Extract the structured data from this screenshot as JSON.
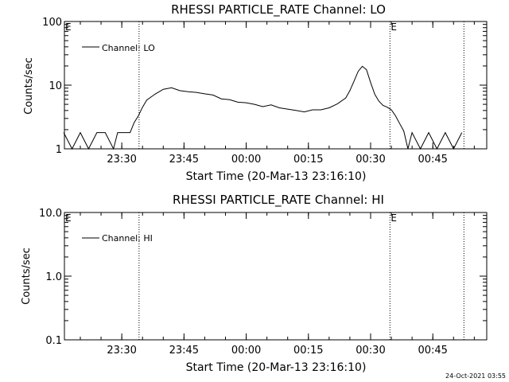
{
  "chart_data": [
    {
      "type": "line",
      "title": "RHESSI PARTICLE_RATE Channel: LO",
      "xlabel": "Start Time (20-Mar-13 23:16:10)",
      "ylabel": "Counts/sec",
      "yscale": "log",
      "ylim": [
        1,
        100
      ],
      "xlim": [
        "23:16:10",
        "00:58:00"
      ],
      "x_ticks": [
        "23:30",
        "23:45",
        "00:00",
        "00:15",
        "00:30",
        "00:45"
      ],
      "y_ticks": [
        "1",
        "10",
        "100"
      ],
      "legend_entry": "Channel: LO",
      "legend_placement": "top-left",
      "markers": [
        {
          "label": "E",
          "time": "23:16:10"
        },
        {
          "label": "",
          "time": "23:34:10"
        },
        {
          "label": "E",
          "time": "00:34:40"
        },
        {
          "label": "",
          "time": "00:52:30"
        }
      ],
      "series": [
        {
          "x": [
            "23:16",
            "23:18",
            "23:20",
            "23:22",
            "23:24",
            "23:26",
            "23:28",
            "23:29",
            "23:30",
            "23:32",
            "23:33",
            "23:34",
            "23:35",
            "23:36",
            "23:38",
            "23:40",
            "23:42",
            "23:44",
            "23:46",
            "23:48",
            "23:50",
            "23:52",
            "23:54",
            "23:56",
            "23:58",
            "00:00",
            "00:02",
            "00:04",
            "00:06",
            "00:08",
            "00:10",
            "00:12",
            "00:14",
            "00:16",
            "00:18",
            "00:20",
            "00:22",
            "00:24",
            "00:25",
            "00:26",
            "00:27",
            "00:28",
            "00:29",
            "00:30",
            "00:31",
            "00:32",
            "00:33",
            "00:34",
            "00:35",
            "00:36",
            "00:37",
            "00:38",
            "00:39",
            "00:40",
            "00:42",
            "00:44",
            "00:46",
            "00:48",
            "00:50",
            "00:52"
          ],
          "values": [
            1.8,
            1.0,
            1.8,
            1.0,
            1.8,
            1.8,
            1.0,
            1.8,
            1.8,
            1.8,
            2.6,
            3.3,
            4.5,
            5.8,
            7.2,
            8.6,
            9.1,
            8.2,
            7.9,
            7.7,
            7.3,
            7.0,
            6.1,
            5.9,
            5.4,
            5.3,
            5.0,
            4.6,
            4.9,
            4.4,
            4.2,
            4.0,
            3.8,
            4.1,
            4.1,
            4.4,
            5.1,
            6.3,
            8.2,
            11.5,
            16.5,
            19.8,
            17.5,
            11.0,
            7.2,
            5.6,
            4.8,
            4.5,
            4.1,
            3.3,
            2.5,
            1.9,
            1.0,
            1.8,
            1.0,
            1.8,
            1.0,
            1.8,
            1.0,
            1.8
          ]
        }
      ]
    },
    {
      "type": "line",
      "title": "RHESSI PARTICLE_RATE Channel: HI",
      "xlabel": "Start Time (20-Mar-13 23:16:10)",
      "ylabel": "Counts/sec",
      "yscale": "log",
      "ylim": [
        0.1,
        10
      ],
      "xlim": [
        "23:16:10",
        "00:58:00"
      ],
      "x_ticks": [
        "23:30",
        "23:45",
        "00:00",
        "00:15",
        "00:30",
        "00:45"
      ],
      "y_ticks": [
        "0.1",
        "1.0",
        "10.0"
      ],
      "legend_entry": "Channel: HI",
      "legend_placement": "top-left",
      "markers": [
        {
          "label": "E",
          "time": "23:16:10"
        },
        {
          "label": "",
          "time": "23:34:10"
        },
        {
          "label": "E",
          "time": "00:34:40"
        },
        {
          "label": "",
          "time": "00:52:30"
        }
      ],
      "series": [
        {
          "x": [],
          "values": []
        }
      ]
    }
  ],
  "footer": {
    "timestamp": "24-Oct-2021 03:55"
  }
}
